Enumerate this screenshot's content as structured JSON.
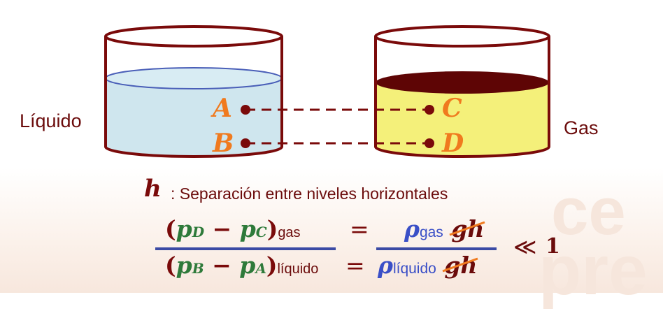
{
  "labels": {
    "liquid": "Líquido",
    "gas": "Gas"
  },
  "points": {
    "a": "A",
    "b": "B",
    "c": "C",
    "d": "D"
  },
  "h_description": {
    "symbol": "h",
    "text": ": Separación entre niveles horizontales"
  },
  "equation": {
    "num_left_p1": "p",
    "num_left_s1": "D",
    "num_left_p2": "p",
    "num_left_s2": "C",
    "num_left_sub": "gas",
    "den_left_p1": "p",
    "den_left_s1": "B",
    "den_left_p2": "p",
    "den_left_s2": "A",
    "den_left_sub": "líquido",
    "num_right_rho": "ρ",
    "num_right_sub": "gas",
    "den_right_rho": "ρ",
    "den_right_sub": "líquido",
    "gh": "gh",
    "equals": "=",
    "much_less": "≪",
    "one": "1"
  },
  "watermark": [
    "ce",
    "pre"
  ],
  "colors": {
    "dark_red": "#7a0a0a",
    "liquid_fill": "#cfe6ee",
    "gas_fill": "#f4f07a",
    "gas_top": "#5e0505",
    "point_orange": "#f07a1e",
    "green": "#2e7a3a",
    "blue": "#3a4fc7"
  }
}
